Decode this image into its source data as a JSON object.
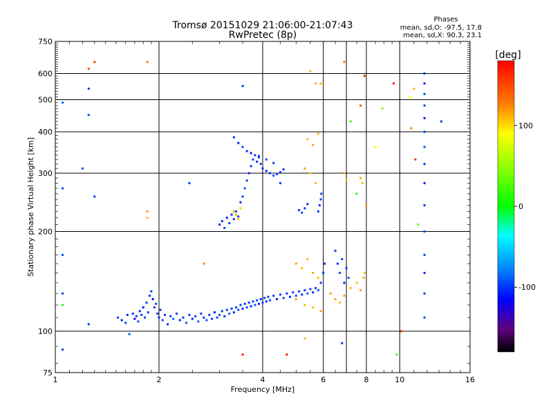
{
  "header": {
    "title_line1": "Tromsø 20151029 21:06:00-21:07:43",
    "title_line2": "RwPretec (8p)",
    "stats_title": "Phases",
    "stats_o": "mean, sd,O: -97.5, 17.8",
    "stats_x": "mean, sd,X:  90.3, 23.1"
  },
  "colorbar": {
    "unit_label": "[deg]",
    "ticks": [
      {
        "value": 100,
        "label": "100"
      },
      {
        "value": 0,
        "label": "0"
      },
      {
        "value": -100,
        "label": "-100"
      }
    ],
    "range": [
      -180,
      180
    ]
  },
  "chart_data": {
    "type": "scatter",
    "title": "Tromsø 20151029 21:06:00-21:07:43",
    "subtitle": "RwPretec (8p)",
    "xlabel": "Frequency [MHz]",
    "ylabel": "Stationary phase Virtual Height [km]",
    "x_scale": "log",
    "y_scale": "log",
    "xlim": [
      1,
      16
    ],
    "ylim": [
      75,
      750
    ],
    "grid": true,
    "x_ticks": [
      {
        "value": 1,
        "label": "1"
      },
      {
        "value": 2,
        "label": "2"
      },
      {
        "value": 4,
        "label": "4"
      },
      {
        "value": 6,
        "label": "6"
      },
      {
        "value": 8,
        "label": "8"
      },
      {
        "value": 10,
        "label": "10"
      },
      {
        "value": 16,
        "label": "16"
      }
    ],
    "y_ticks": [
      {
        "value": 75,
        "label": "75"
      },
      {
        "value": 100,
        "label": "100"
      },
      {
        "value": 200,
        "label": "200"
      },
      {
        "value": 300,
        "label": "300"
      },
      {
        "value": 400,
        "label": "400"
      },
      {
        "value": 500,
        "label": "500"
      },
      {
        "value": 600,
        "label": "600"
      },
      {
        "value": 750,
        "label": "750"
      }
    ],
    "x_grid": [
      1,
      2,
      4,
      6,
      7,
      8,
      10,
      16
    ],
    "y_grid": [
      100,
      200,
      300,
      400,
      500,
      600
    ],
    "points": [
      [
        1.52,
        110,
        -100
      ],
      [
        1.56,
        108,
        -110
      ],
      [
        1.6,
        106,
        -95
      ],
      [
        1.62,
        112,
        -105
      ],
      [
        1.64,
        98,
        -90
      ],
      [
        1.68,
        113,
        -100
      ],
      [
        1.7,
        109,
        -115
      ],
      [
        1.72,
        111,
        -100
      ],
      [
        1.74,
        107,
        -95
      ],
      [
        1.76,
        115,
        -105
      ],
      [
        1.78,
        112,
        -100
      ],
      [
        1.8,
        118,
        -110
      ],
      [
        1.82,
        110,
        -100
      ],
      [
        1.84,
        122,
        -95
      ],
      [
        1.86,
        114,
        -100
      ],
      [
        1.88,
        128,
        -105
      ],
      [
        1.9,
        132,
        -100
      ],
      [
        1.92,
        125,
        -110
      ],
      [
        1.94,
        118,
        -100
      ],
      [
        1.96,
        121,
        -95
      ],
      [
        1.98,
        113,
        -100
      ],
      [
        2.0,
        110,
        -105
      ],
      [
        2.02,
        116,
        -100
      ],
      [
        2.05,
        108,
        -95
      ],
      [
        2.08,
        112,
        -100
      ],
      [
        2.12,
        105,
        -105
      ],
      [
        2.16,
        111,
        -100
      ],
      [
        2.2,
        109,
        -90
      ],
      [
        2.25,
        113,
        -100
      ],
      [
        2.3,
        108,
        -105
      ],
      [
        2.35,
        110,
        -100
      ],
      [
        2.4,
        106,
        -95
      ],
      [
        2.45,
        112,
        -100
      ],
      [
        2.5,
        109,
        -105
      ],
      [
        2.55,
        111,
        -100
      ],
      [
        2.6,
        107,
        -90
      ],
      [
        2.65,
        113,
        -100
      ],
      [
        2.7,
        110,
        -105
      ],
      [
        2.75,
        108,
        -95
      ],
      [
        2.8,
        112,
        -100
      ],
      [
        2.85,
        109,
        -100
      ],
      [
        2.9,
        114,
        -110
      ],
      [
        2.95,
        110,
        -100
      ],
      [
        3.0,
        112,
        -95
      ],
      [
        3.05,
        115,
        -100
      ],
      [
        3.1,
        111,
        -105
      ],
      [
        3.15,
        116,
        -100
      ],
      [
        3.2,
        113,
        -90
      ],
      [
        3.25,
        117,
        -100
      ],
      [
        3.3,
        114,
        -105
      ],
      [
        3.35,
        118,
        -100
      ],
      [
        3.4,
        116,
        -95
      ],
      [
        3.45,
        120,
        -100
      ],
      [
        3.5,
        117,
        -105
      ],
      [
        3.55,
        121,
        -100
      ],
      [
        3.6,
        118,
        -95
      ],
      [
        3.65,
        122,
        -100
      ],
      [
        3.7,
        119,
        -105
      ],
      [
        3.75,
        123,
        -100
      ],
      [
        3.8,
        120,
        -95
      ],
      [
        3.85,
        124,
        -100
      ],
      [
        3.9,
        121,
        -110
      ],
      [
        3.95,
        125,
        -100
      ],
      [
        4.0,
        122,
        -95
      ],
      [
        4.05,
        126,
        -100
      ],
      [
        4.1,
        123,
        -105
      ],
      [
        4.15,
        127,
        -100
      ],
      [
        4.2,
        124,
        -95
      ],
      [
        4.3,
        128,
        -100
      ],
      [
        4.4,
        125,
        -105
      ],
      [
        4.5,
        129,
        -100
      ],
      [
        4.6,
        126,
        -95
      ],
      [
        4.7,
        130,
        -100
      ],
      [
        4.8,
        127,
        -105
      ],
      [
        4.9,
        131,
        -100
      ],
      [
        5.0,
        128,
        -95
      ],
      [
        5.1,
        132,
        -100
      ],
      [
        5.2,
        129,
        -105
      ],
      [
        5.3,
        133,
        -100
      ],
      [
        5.4,
        130,
        -95
      ],
      [
        5.5,
        134,
        -100
      ],
      [
        5.6,
        131,
        -105
      ],
      [
        5.7,
        135,
        -100
      ],
      [
        5.8,
        133,
        -95
      ],
      [
        5.9,
        140,
        -100
      ],
      [
        6.0,
        150,
        -100
      ],
      [
        6.05,
        160,
        -105
      ],
      [
        3.0,
        210,
        -105
      ],
      [
        3.05,
        215,
        -100
      ],
      [
        3.1,
        205,
        -95
      ],
      [
        3.15,
        220,
        -110
      ],
      [
        3.2,
        212,
        -100
      ],
      [
        3.25,
        225,
        -105
      ],
      [
        3.3,
        218,
        -100
      ],
      [
        3.35,
        230,
        -95
      ],
      [
        3.4,
        222,
        -100
      ],
      [
        3.45,
        245,
        -105
      ],
      [
        3.5,
        255,
        -100
      ],
      [
        3.55,
        270,
        -95
      ],
      [
        3.6,
        285,
        -100
      ],
      [
        3.65,
        300,
        -105
      ],
      [
        3.7,
        315,
        -100
      ],
      [
        3.75,
        330,
        -95
      ],
      [
        3.8,
        340,
        -100
      ],
      [
        3.85,
        325,
        -105
      ],
      [
        3.9,
        335,
        -100
      ],
      [
        3.95,
        320,
        -95
      ],
      [
        4.0,
        310,
        -100
      ],
      [
        4.1,
        305,
        -105
      ],
      [
        4.2,
        300,
        -100
      ],
      [
        4.3,
        295,
        -95
      ],
      [
        4.4,
        298,
        -100
      ],
      [
        4.5,
        302,
        -105
      ],
      [
        4.6,
        308,
        -100
      ],
      [
        3.3,
        385,
        -100
      ],
      [
        3.4,
        370,
        -105
      ],
      [
        3.5,
        360,
        -95
      ],
      [
        3.6,
        350,
        -100
      ],
      [
        3.7,
        345,
        -110
      ],
      [
        3.9,
        338,
        -100
      ],
      [
        4.1,
        330,
        -95
      ],
      [
        4.3,
        322,
        -100
      ],
      [
        5.8,
        230,
        -100
      ],
      [
        5.85,
        240,
        -105
      ],
      [
        5.9,
        250,
        -95
      ],
      [
        5.92,
        260,
        -100
      ],
      [
        5.3,
        235,
        -100
      ],
      [
        5.4,
        242,
        -105
      ],
      [
        5.2,
        228,
        -95
      ],
      [
        5.1,
        232,
        -100
      ],
      [
        3.3,
        230,
        120
      ],
      [
        3.35,
        225,
        115
      ],
      [
        3.4,
        218,
        110
      ],
      [
        3.45,
        235,
        105
      ],
      [
        5.0,
        160,
        120
      ],
      [
        5.2,
        155,
        110
      ],
      [
        5.4,
        165,
        115
      ],
      [
        5.6,
        150,
        120
      ],
      [
        5.8,
        145,
        110
      ],
      [
        6.3,
        130,
        120
      ],
      [
        6.5,
        125,
        115
      ],
      [
        6.7,
        122,
        110
      ],
      [
        6.9,
        128,
        120
      ],
      [
        7.2,
        135,
        115
      ],
      [
        7.5,
        140,
        110
      ],
      [
        7.7,
        133,
        120
      ],
      [
        7.85,
        145,
        115
      ],
      [
        7.9,
        150,
        110
      ],
      [
        5.0,
        125,
        120
      ],
      [
        5.3,
        120,
        115
      ],
      [
        5.6,
        118,
        110
      ],
      [
        5.9,
        115,
        120
      ],
      [
        5.4,
        380,
        110
      ],
      [
        5.6,
        365,
        120
      ],
      [
        5.8,
        395,
        115
      ],
      [
        5.5,
        300,
        105
      ],
      [
        5.7,
        280,
        110
      ],
      [
        5.3,
        310,
        120
      ],
      [
        6.9,
        300,
        115
      ],
      [
        7.0,
        285,
        110
      ],
      [
        7.7,
        290,
        120
      ],
      [
        7.8,
        280,
        110
      ],
      [
        6.5,
        175,
        -100
      ],
      [
        6.6,
        160,
        -105
      ],
      [
        6.7,
        150,
        -95
      ],
      [
        6.8,
        165,
        -100
      ],
      [
        6.9,
        140,
        -110
      ],
      [
        7.0,
        155,
        -100
      ],
      [
        7.1,
        145,
        -95
      ],
      [
        11.8,
        600,
        -100
      ],
      [
        11.8,
        560,
        -105
      ],
      [
        11.8,
        520,
        -95
      ],
      [
        11.8,
        480,
        -100
      ],
      [
        11.8,
        440,
        -110
      ],
      [
        11.8,
        400,
        -100
      ],
      [
        11.8,
        360,
        -95
      ],
      [
        11.8,
        320,
        -100
      ],
      [
        11.8,
        280,
        -105
      ],
      [
        11.8,
        240,
        -100
      ],
      [
        11.8,
        200,
        -95
      ],
      [
        11.8,
        170,
        -100
      ],
      [
        11.8,
        150,
        -105
      ],
      [
        11.8,
        130,
        -100
      ],
      [
        11.8,
        110,
        -95
      ],
      [
        1.05,
        490,
        -90
      ],
      [
        1.05,
        270,
        -100
      ],
      [
        1.05,
        170,
        -95
      ],
      [
        1.05,
        130,
        -100
      ],
      [
        1.05,
        120,
        10
      ],
      [
        1.05,
        88,
        -100
      ],
      [
        1.25,
        620,
        150
      ],
      [
        1.3,
        650,
        160
      ],
      [
        1.25,
        540,
        -100
      ],
      [
        1.25,
        450,
        -95
      ],
      [
        1.25,
        105,
        -100
      ],
      [
        1.3,
        255,
        -100
      ],
      [
        1.2,
        310,
        -95
      ],
      [
        1.85,
        650,
        130
      ],
      [
        1.85,
        230,
        120
      ],
      [
        1.85,
        220,
        115
      ],
      [
        2.45,
        280,
        -100
      ],
      [
        2.7,
        160,
        130
      ],
      [
        3.5,
        550,
        -100
      ],
      [
        3.5,
        85,
        170
      ],
      [
        4.5,
        280,
        -100
      ],
      [
        5.5,
        610,
        110
      ],
      [
        5.7,
        560,
        115
      ],
      [
        5.9,
        560,
        110
      ],
      [
        6.9,
        650,
        140
      ],
      [
        7.7,
        480,
        150
      ],
      [
        7.9,
        590,
        170
      ],
      [
        8.5,
        360,
        90
      ],
      [
        8.9,
        470,
        50
      ],
      [
        9.6,
        560,
        170
      ],
      [
        10.7,
        510,
        90
      ],
      [
        11.0,
        540,
        110
      ],
      [
        10.8,
        410,
        130
      ],
      [
        11.1,
        330,
        160
      ],
      [
        11.3,
        210,
        40
      ],
      [
        13.2,
        430,
        -100
      ],
      [
        9.8,
        85,
        20
      ],
      [
        10.1,
        100,
        160
      ],
      [
        7.2,
        430,
        20
      ],
      [
        7.5,
        260,
        10
      ],
      [
        8.0,
        240,
        120
      ],
      [
        4.7,
        85,
        170
      ],
      [
        5.3,
        95,
        110
      ],
      [
        6.8,
        92,
        -100
      ]
    ]
  }
}
